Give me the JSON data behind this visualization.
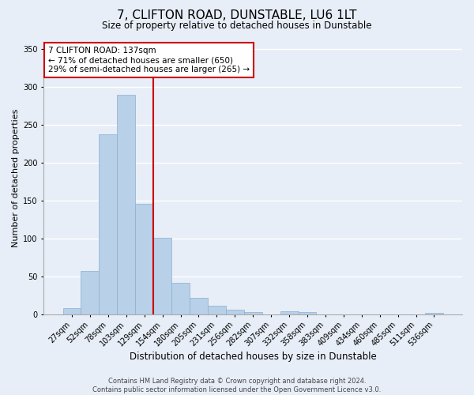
{
  "title": "7, CLIFTON ROAD, DUNSTABLE, LU6 1LT",
  "subtitle": "Size of property relative to detached houses in Dunstable",
  "xlabel": "Distribution of detached houses by size in Dunstable",
  "ylabel": "Number of detached properties",
  "bar_values": [
    8,
    57,
    238,
    290,
    146,
    101,
    41,
    22,
    11,
    6,
    3,
    0,
    4,
    3,
    0,
    0,
    0,
    0,
    0,
    0,
    2
  ],
  "bin_labels": [
    "27sqm",
    "52sqm",
    "78sqm",
    "103sqm",
    "129sqm",
    "154sqm",
    "180sqm",
    "205sqm",
    "231sqm",
    "256sqm",
    "282sqm",
    "307sqm",
    "332sqm",
    "358sqm",
    "383sqm",
    "409sqm",
    "434sqm",
    "460sqm",
    "485sqm",
    "511sqm",
    "536sqm"
  ],
  "bar_color": "#b8d0e8",
  "bar_edge_color": "#8ab0d0",
  "vline_color": "#cc0000",
  "annotation_text": "7 CLIFTON ROAD: 137sqm\n← 71% of detached houses are smaller (650)\n29% of semi-detached houses are larger (265) →",
  "annotation_box_color": "#ffffff",
  "annotation_box_edge_color": "#cc0000",
  "ylim": [
    0,
    360
  ],
  "yticks": [
    0,
    50,
    100,
    150,
    200,
    250,
    300,
    350
  ],
  "background_color": "#e8eef7",
  "plot_bg_color": "#e8eef7",
  "footer_line1": "Contains HM Land Registry data © Crown copyright and database right 2024.",
  "footer_line2": "Contains public sector information licensed under the Open Government Licence v3.0.",
  "title_fontsize": 11,
  "subtitle_fontsize": 8.5,
  "xlabel_fontsize": 8.5,
  "ylabel_fontsize": 8,
  "tick_fontsize": 7,
  "annotation_fontsize": 7.5,
  "footer_fontsize": 6
}
